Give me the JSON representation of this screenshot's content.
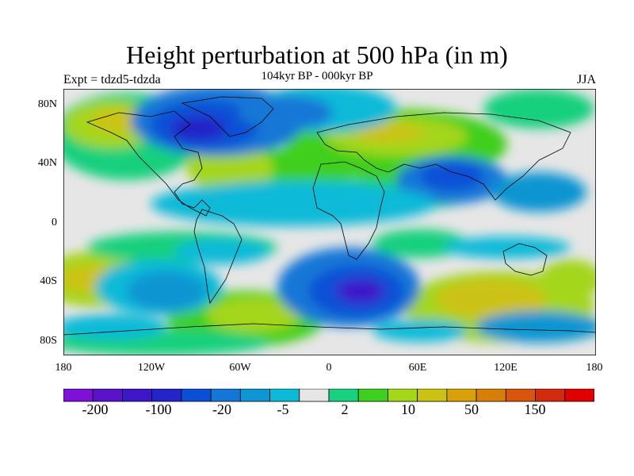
{
  "title": "Height perturbation at 500 hPa (in m)",
  "subtitle": "104kyr BP - 000kyr BP",
  "left_label": "Expt = tdzd5-tdzda",
  "right_label": "JJA",
  "lat_ticks": [
    "80N",
    "40N",
    "0",
    "40S",
    "80S"
  ],
  "lon_ticks": [
    "180",
    "120W",
    "60W",
    "0",
    "60E",
    "120E",
    "180"
  ],
  "colorbar": {
    "colors": [
      "#7f10d8",
      "#5a12c8",
      "#3d16c9",
      "#2424c8",
      "#0b4fd6",
      "#1477d7",
      "#0f95d2",
      "#0cbad8",
      "#e6e6e6",
      "#19d07e",
      "#3fcf1e",
      "#a4d61a",
      "#ccc214",
      "#d8a10a",
      "#d77e08",
      "#d9540c",
      "#d12a0c",
      "#e00000"
    ],
    "labels": [
      "-200",
      "-100",
      "-20",
      "-5",
      "2",
      "10",
      "50",
      "150"
    ]
  }
}
